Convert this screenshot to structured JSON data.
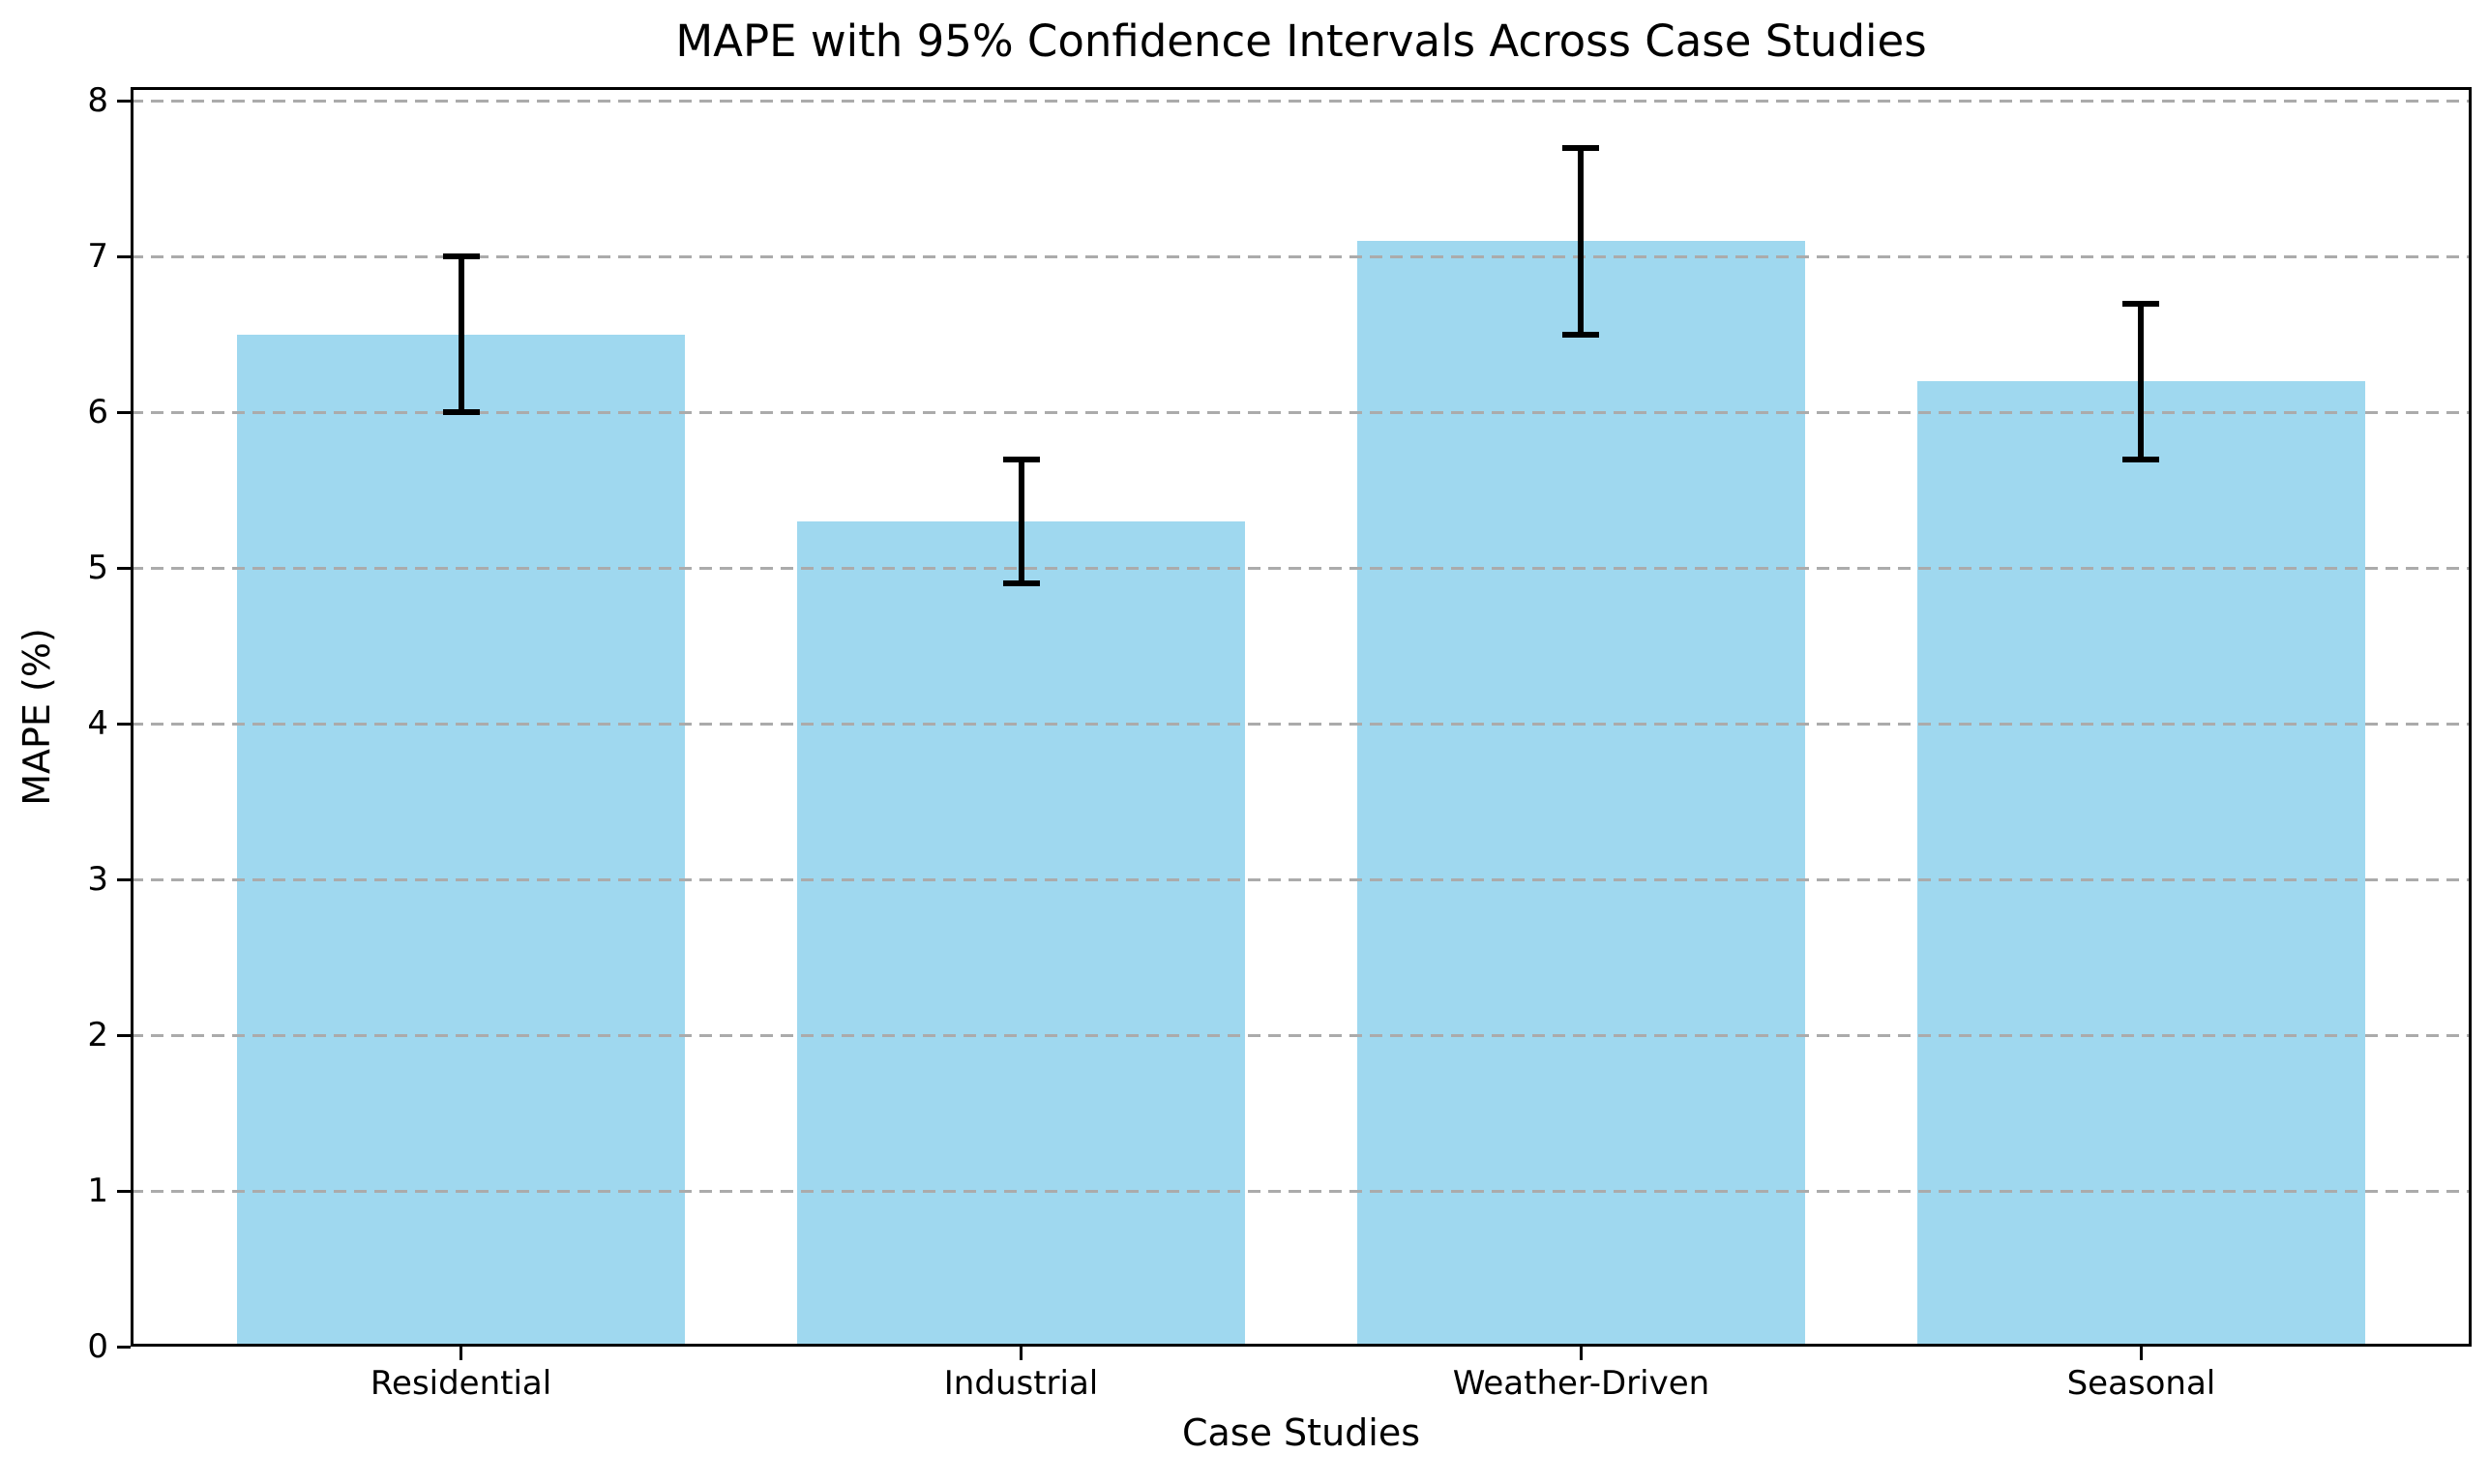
{
  "chart_data": {
    "type": "bar",
    "title": "MAPE with 95% Confidence Intervals Across Case Studies",
    "xlabel": "Case Studies",
    "ylabel": "MAPE (%)",
    "categories": [
      "Residential",
      "Industrial",
      "Weather-Driven",
      "Seasonal"
    ],
    "values": [
      6.5,
      5.3,
      7.1,
      6.2
    ],
    "error_margin_95ci": [
      0.5,
      0.4,
      0.6,
      0.5
    ],
    "ci_low": [
      6.0,
      4.9,
      6.5,
      5.7
    ],
    "ci_high": [
      7.0,
      5.7,
      7.7,
      6.7
    ],
    "yticks": [
      0,
      1,
      2,
      3,
      4,
      5,
      6,
      7,
      8
    ],
    "ylim": [
      0,
      8.09
    ],
    "xlim": [
      -0.59,
      3.59
    ],
    "bar_width_units": 0.8,
    "grid": "horizontal-dashed",
    "legend": "none",
    "colors": {
      "bar_fill": "#9FD8EF",
      "error_bar": "#000000",
      "grid_line": "#ABABAB",
      "axis": "#000000",
      "background": "#FFFFFF"
    }
  }
}
